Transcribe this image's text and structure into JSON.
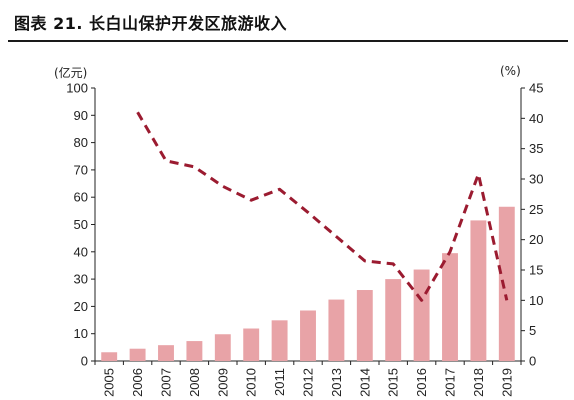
{
  "figure": {
    "title": "图表 21. 长白山保护开发区旅游收入"
  },
  "chart_data": {
    "type": "bar+line",
    "categories": [
      "2005",
      "2006",
      "2007",
      "2008",
      "2009",
      "2010",
      "2011",
      "2012",
      "2013",
      "2014",
      "2015",
      "2016",
      "2017",
      "2018",
      "2019"
    ],
    "series": [
      {
        "type": "bar",
        "axis": "left",
        "values": [
          3.2,
          4.5,
          5.8,
          7.3,
          9.8,
          11.9,
          14.9,
          18.5,
          22.5,
          26.0,
          30.0,
          33.5,
          39.5,
          51.5,
          56.5
        ],
        "color": "#e8a3a7"
      },
      {
        "type": "line",
        "axis": "right",
        "values": [
          null,
          41.0,
          33.0,
          32.0,
          28.8,
          26.5,
          28.3,
          24.5,
          20.5,
          16.5,
          16.0,
          10.0,
          18.0,
          30.8,
          10.0
        ],
        "color": "#9b1b30",
        "style": "dashed"
      }
    ],
    "y_left": {
      "unit": "(亿元)",
      "min": 0,
      "max": 100,
      "ticks": [
        0,
        10,
        20,
        30,
        40,
        50,
        60,
        70,
        80,
        90,
        100
      ]
    },
    "y_right": {
      "unit": "(%)",
      "min": 0,
      "max": 45,
      "ticks": [
        0,
        5,
        10,
        15,
        20,
        25,
        30,
        35,
        40,
        45
      ]
    },
    "grid": false,
    "legend": "none"
  }
}
